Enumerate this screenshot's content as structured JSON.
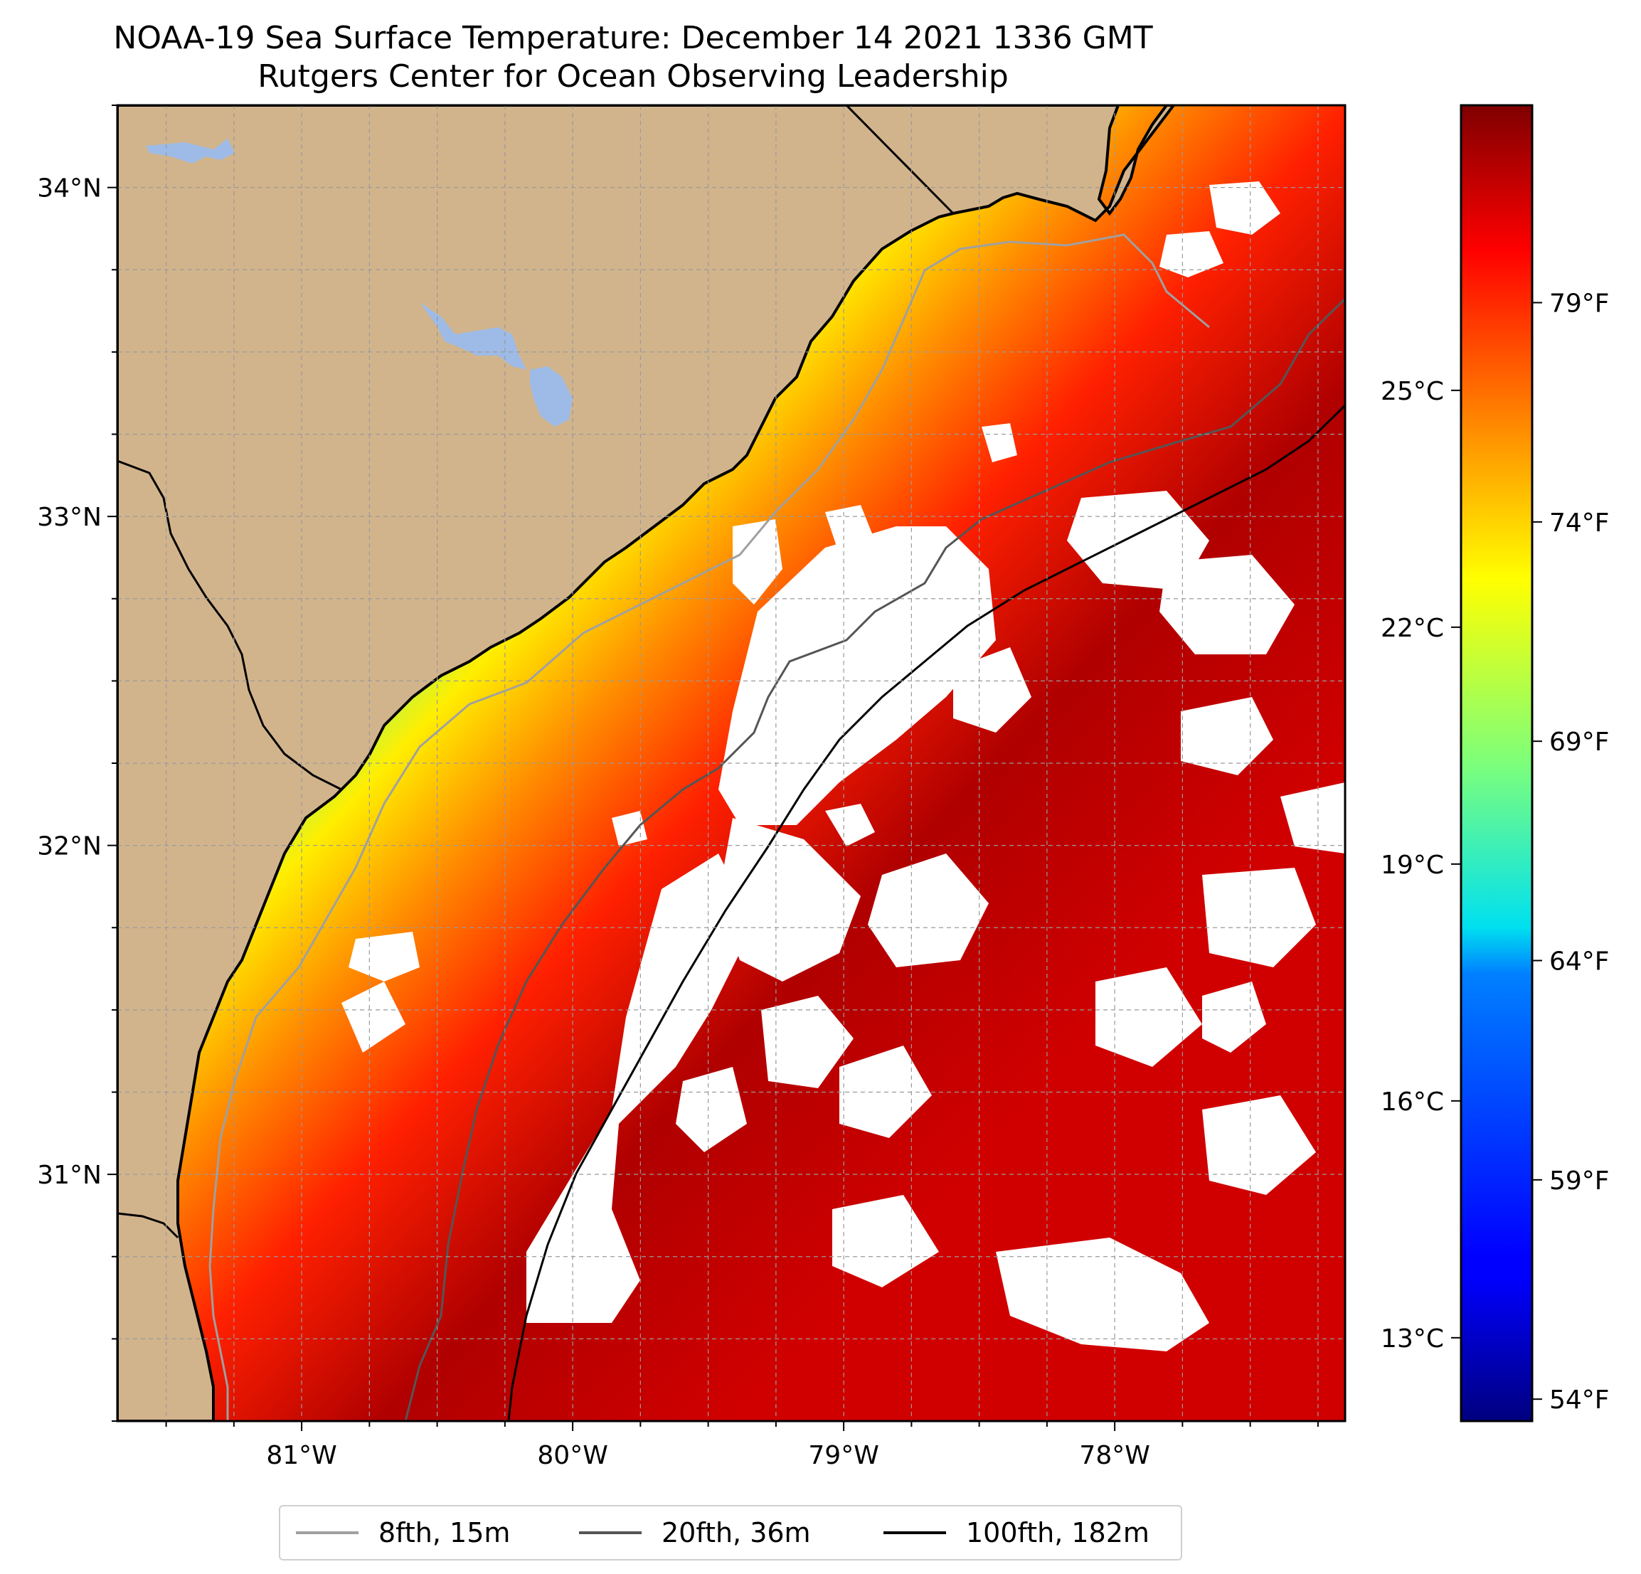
{
  "header": {
    "title_line1": "NOAA-19 Sea Surface Temperature: December 14 2021 1336 GMT",
    "title_line2": "Rutgers Center for Ocean Observing Leadership"
  },
  "map": {
    "extent": {
      "lon_min": -81.68,
      "lon_max": -77.15,
      "lat_min": 30.25,
      "lat_max": 34.25
    },
    "lat_ticks": [
      {
        "lat": 34,
        "label": "34°N"
      },
      {
        "lat": 33,
        "label": "33°N"
      },
      {
        "lat": 32,
        "label": "32°N"
      },
      {
        "lat": 31,
        "label": "31°N"
      }
    ],
    "lon_ticks": [
      {
        "lon": -81,
        "label": "81°W"
      },
      {
        "lon": -80,
        "label": "80°W"
      },
      {
        "lon": -79,
        "label": "79°W"
      },
      {
        "lon": -78,
        "label": "78°W"
      }
    ],
    "gridlines": "dashed",
    "colors": {
      "land": "#d2b48c",
      "lakes": "#9dbbe6",
      "clouds": "#ffffff",
      "coastline": "#000000"
    }
  },
  "colorbar": {
    "colormap": "jet",
    "range_f": [
      53.5,
      83.5
    ],
    "celsius_ticks": [
      {
        "value_c": 25,
        "label": "25°C"
      },
      {
        "value_c": 22,
        "label": "22°C"
      },
      {
        "value_c": 19,
        "label": "19°C"
      },
      {
        "value_c": 16,
        "label": "16°C"
      },
      {
        "value_c": 13,
        "label": "13°C"
      }
    ],
    "fahrenheit_ticks": [
      {
        "value_f": 79,
        "label": "79°F"
      },
      {
        "value_f": 74,
        "label": "74°F"
      },
      {
        "value_f": 69,
        "label": "69°F"
      },
      {
        "value_f": 64,
        "label": "64°F"
      },
      {
        "value_f": 59,
        "label": "59°F"
      },
      {
        "value_f": 54,
        "label": "54°F"
      }
    ]
  },
  "legend": {
    "items": [
      {
        "label": "8fth, 15m",
        "color": "#a0a0a0"
      },
      {
        "label": "20fth, 36m",
        "color": "#555555"
      },
      {
        "label": "100fth, 182m",
        "color": "#000000"
      }
    ]
  }
}
